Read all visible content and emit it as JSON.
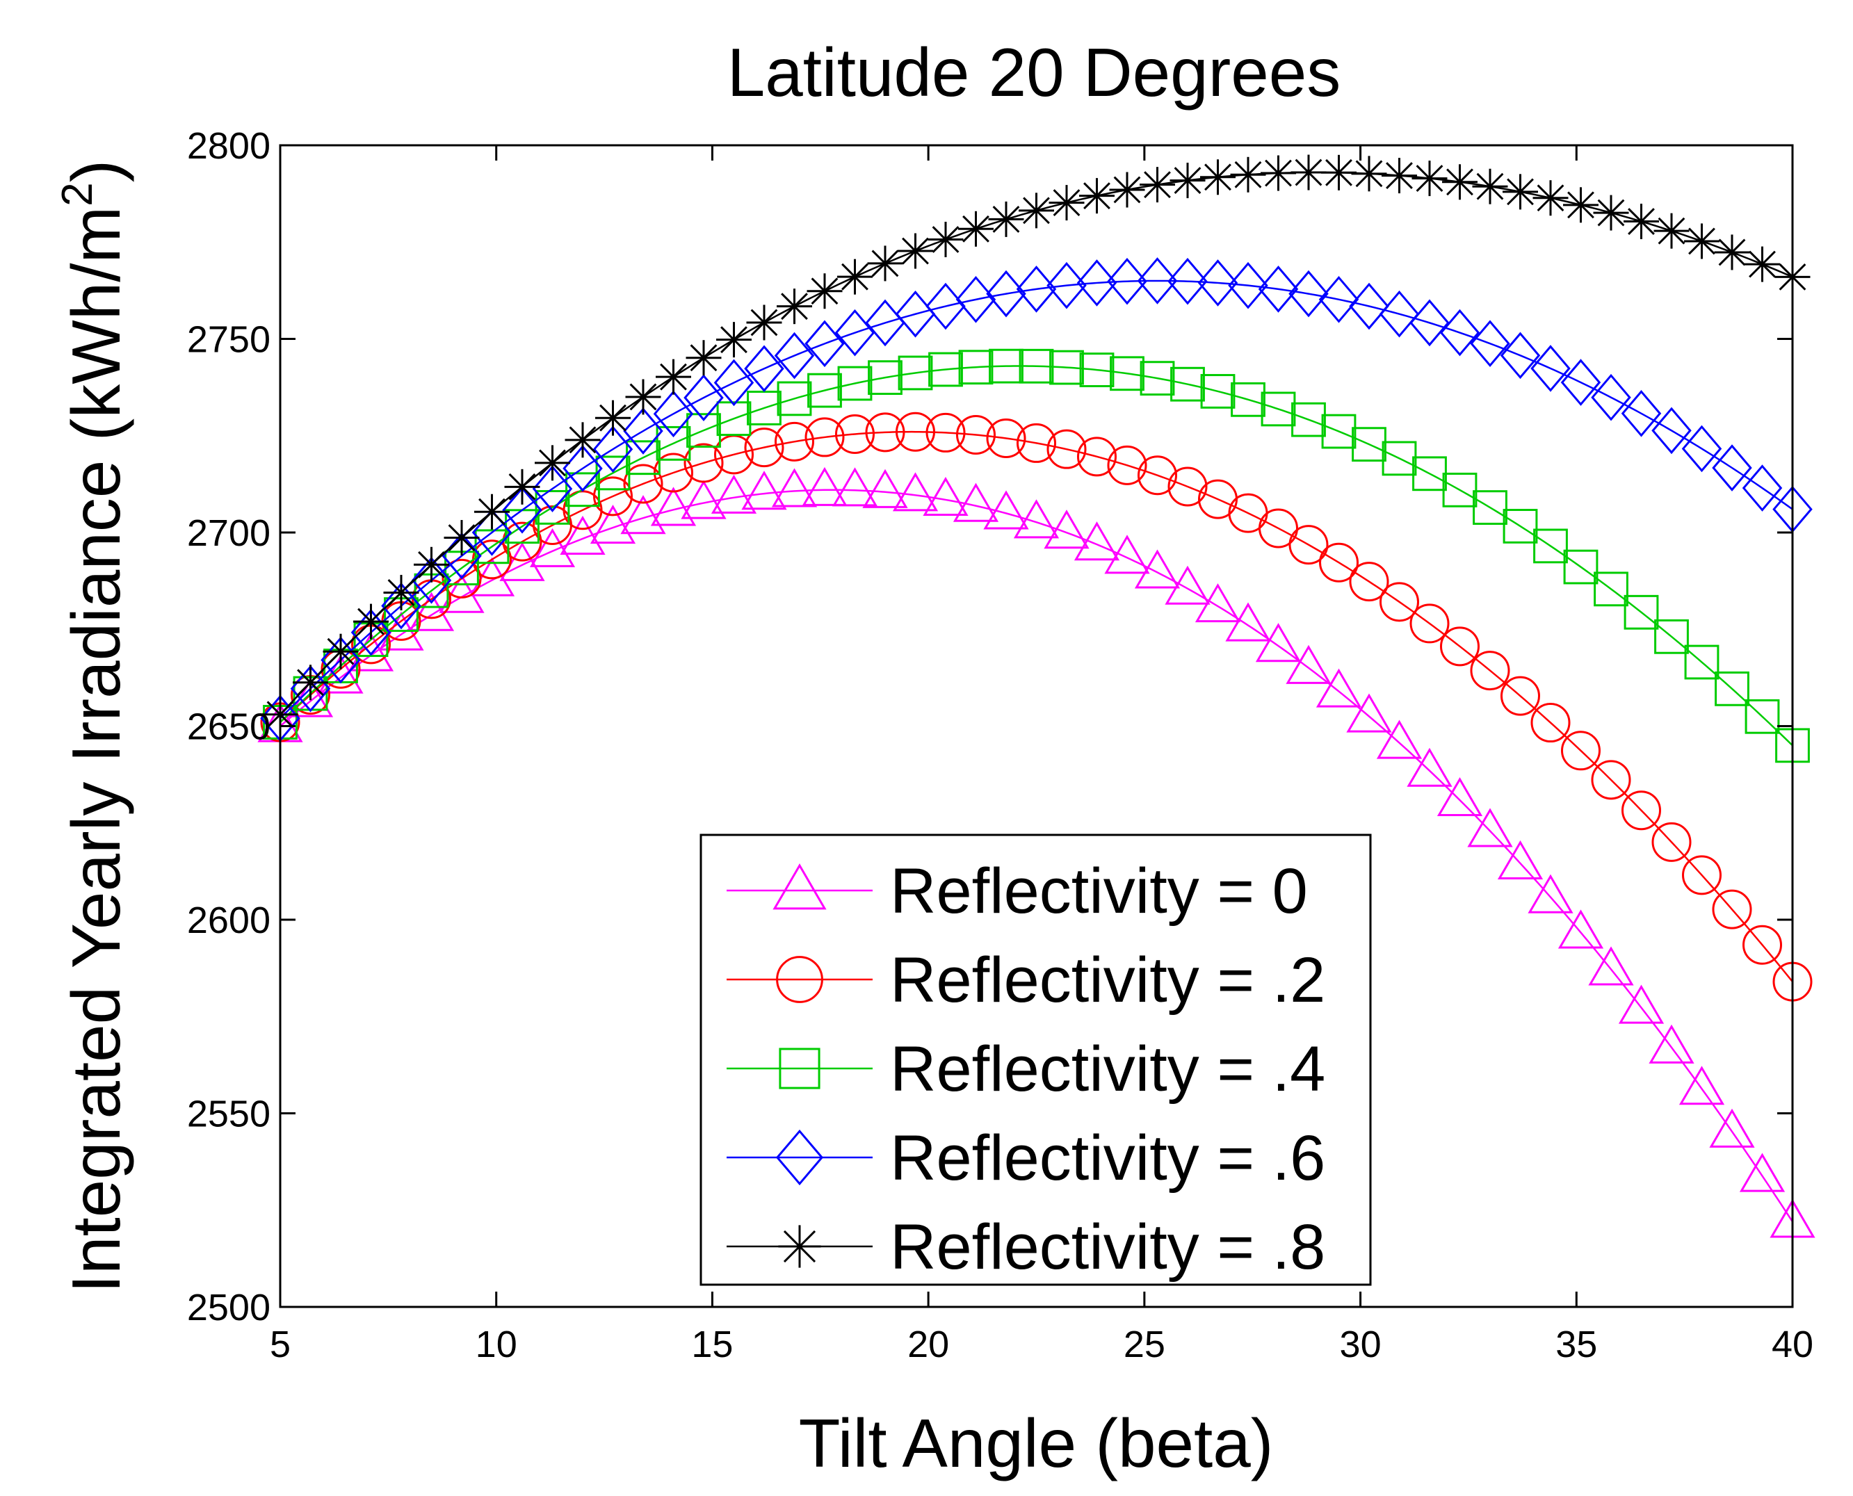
{
  "chart_data": {
    "type": "line",
    "title": "Latitude 20 Degrees",
    "xlabel": "Tilt Angle (beta)",
    "ylabel": "Integrated Yearly Irradiance (kWh/m",
    "ylabel_sup": "2",
    "ylabel_close": ")",
    "xlim": [
      5,
      40
    ],
    "ylim": [
      2500,
      2800
    ],
    "xticks": [
      5,
      10,
      15,
      20,
      25,
      30,
      35,
      40
    ],
    "yticks": [
      2500,
      2550,
      2600,
      2650,
      2700,
      2750,
      2800
    ],
    "x_step": 0.7,
    "legend_position": "bottom-center",
    "series": [
      {
        "name": "Reflectivity = 0",
        "color": "#ff00ff",
        "marker": "triangle",
        "peak_x": 17.8,
        "peak_y": 2711,
        "value_at_5": 2650,
        "value_at_40": 2522
      },
      {
        "name": "Reflectivity = .2",
        "color": "#ff0000",
        "marker": "circle",
        "peak_x": 19.6,
        "peak_y": 2726,
        "value_at_5": 2651,
        "value_at_40": 2584
      },
      {
        "name": "Reflectivity = .4",
        "color": "#00cc00",
        "marker": "square",
        "peak_x": 22.1,
        "peak_y": 2743,
        "value_at_5": 2651,
        "value_at_40": 2645
      },
      {
        "name": "Reflectivity = .6",
        "color": "#0000ff",
        "marker": "diamond",
        "peak_x": 25.3,
        "peak_y": 2765,
        "value_at_5": 2652,
        "value_at_40": 2706
      },
      {
        "name": "Reflectivity = .8",
        "color": "#000000",
        "marker": "asterisk",
        "peak_x": 29.0,
        "peak_y": 2793,
        "value_at_5": 2653,
        "value_at_40": 2766
      }
    ]
  }
}
